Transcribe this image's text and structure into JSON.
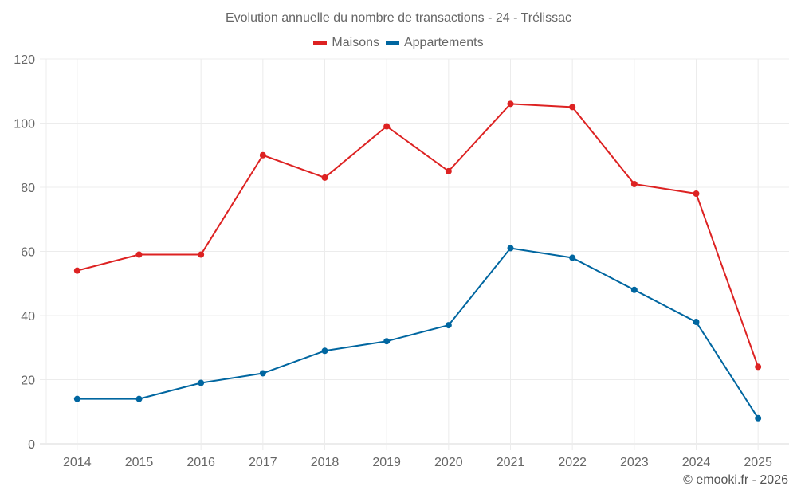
{
  "chart_data": {
    "type": "line",
    "title": "Evolution annuelle du nombre de transactions - 24 - Trélissac",
    "xlabel": "",
    "ylabel": "",
    "categories": [
      "2014",
      "2015",
      "2016",
      "2017",
      "2018",
      "2019",
      "2020",
      "2021",
      "2022",
      "2023",
      "2024",
      "2025"
    ],
    "series": [
      {
        "name": "Maisons",
        "color": "#dd2222",
        "values": [
          54,
          59,
          59,
          90,
          83,
          99,
          85,
          106,
          105,
          81,
          78,
          24
        ]
      },
      {
        "name": "Appartements",
        "color": "#0066a0",
        "values": [
          14,
          14,
          19,
          22,
          29,
          32,
          37,
          61,
          58,
          48,
          38,
          8
        ]
      }
    ],
    "ylim": [
      0,
      120
    ],
    "yticks": [
      0,
      20,
      40,
      60,
      80,
      100,
      120
    ],
    "grid": true,
    "legend_position": "top-center"
  },
  "credit": "© emooki.fr - 2026"
}
